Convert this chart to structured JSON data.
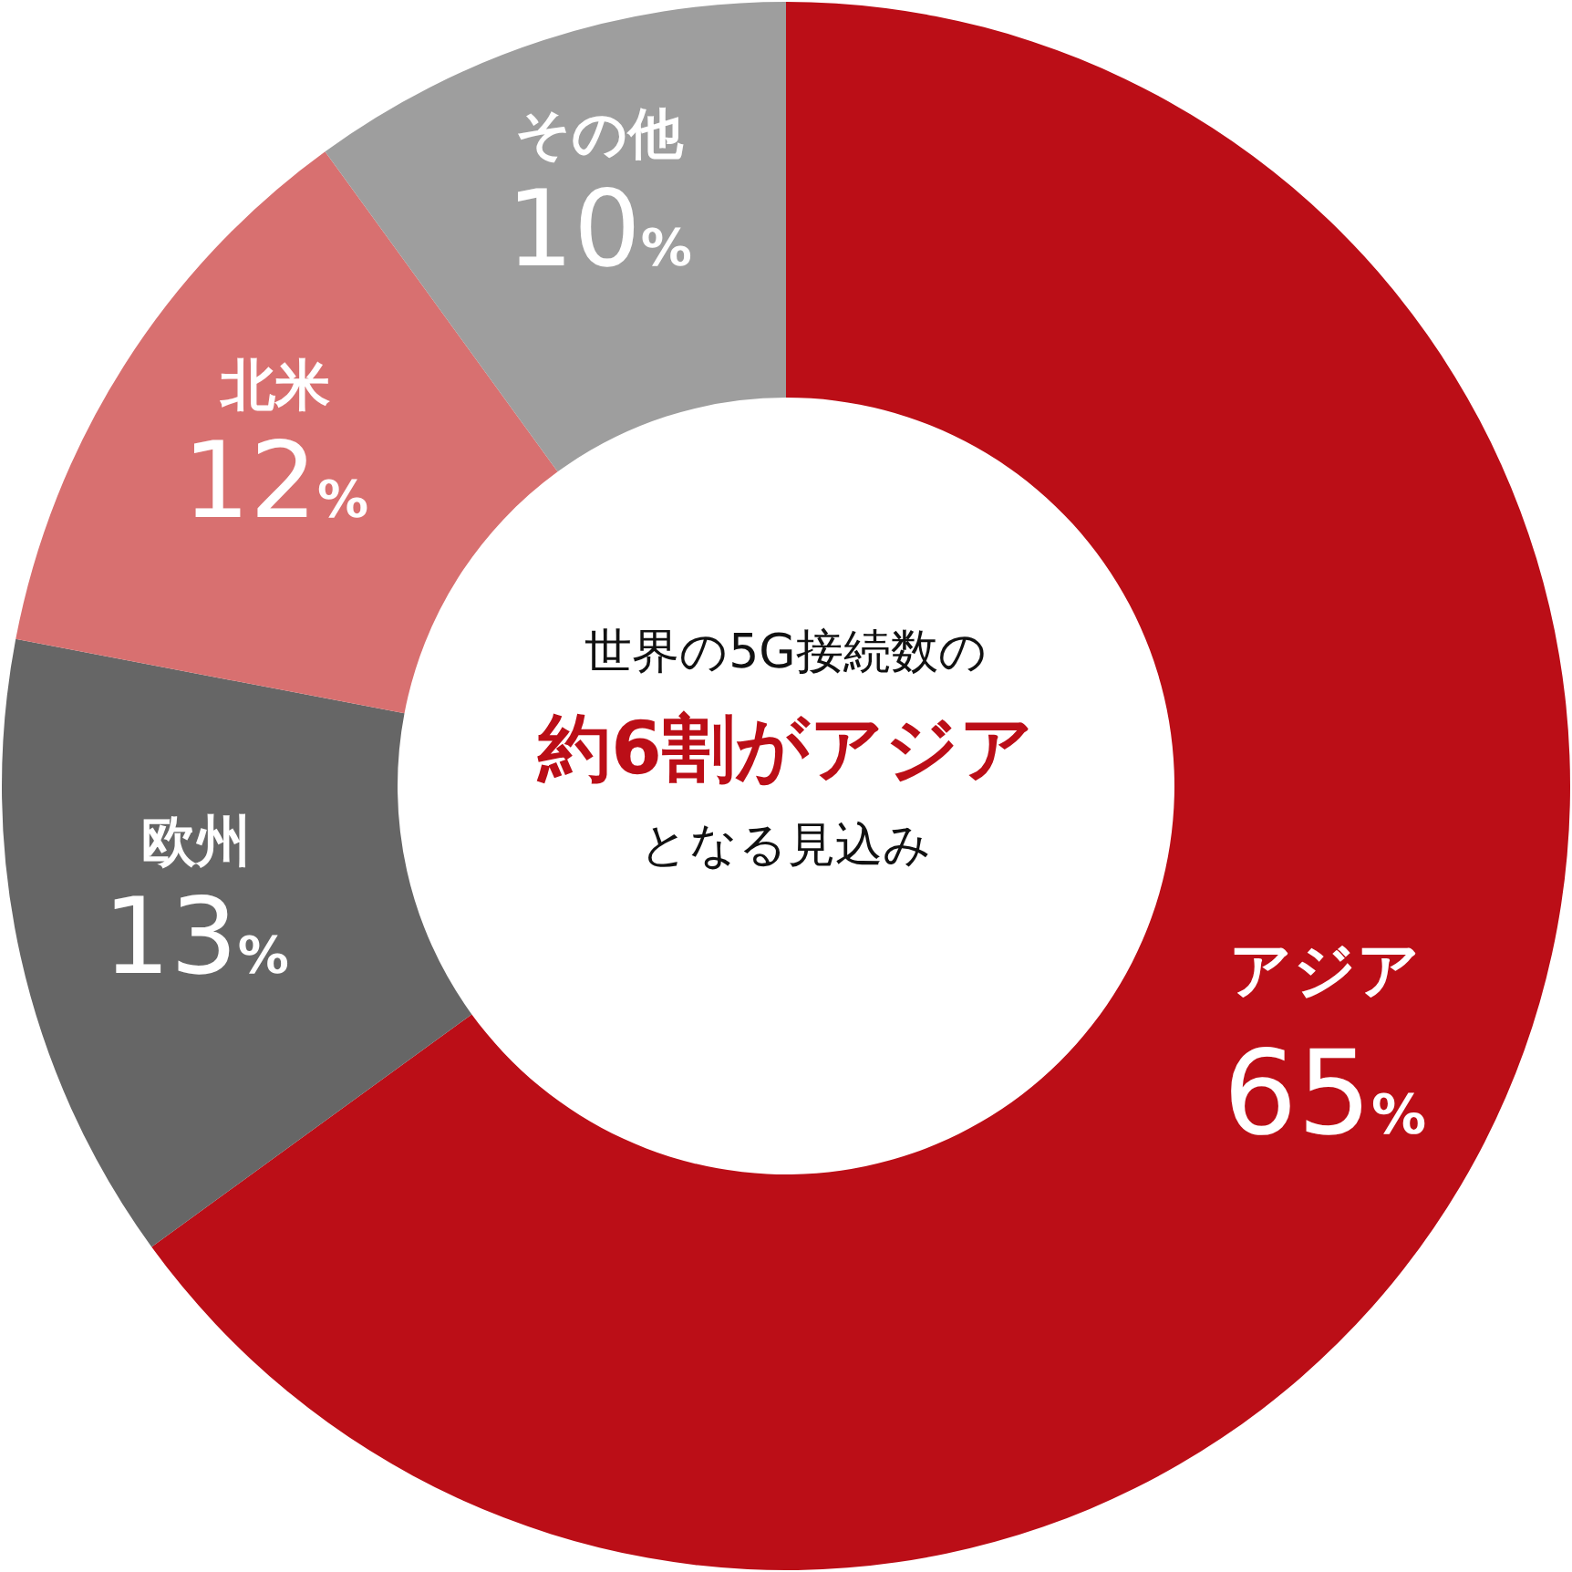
{
  "chart_data": {
    "type": "donut",
    "categories": [
      "アジア",
      "欧州",
      "北米",
      "その他"
    ],
    "values": [
      65,
      13,
      12,
      10
    ],
    "colors": [
      "#bb0e17",
      "#666666",
      "#d87070",
      "#9e9e9e"
    ],
    "value_labels": [
      "65%",
      "13%",
      "12%",
      "10%"
    ],
    "annotations": [
      "世界の5G接続数の",
      "約6割がアジア",
      "となる見込み"
    ]
  }
}
